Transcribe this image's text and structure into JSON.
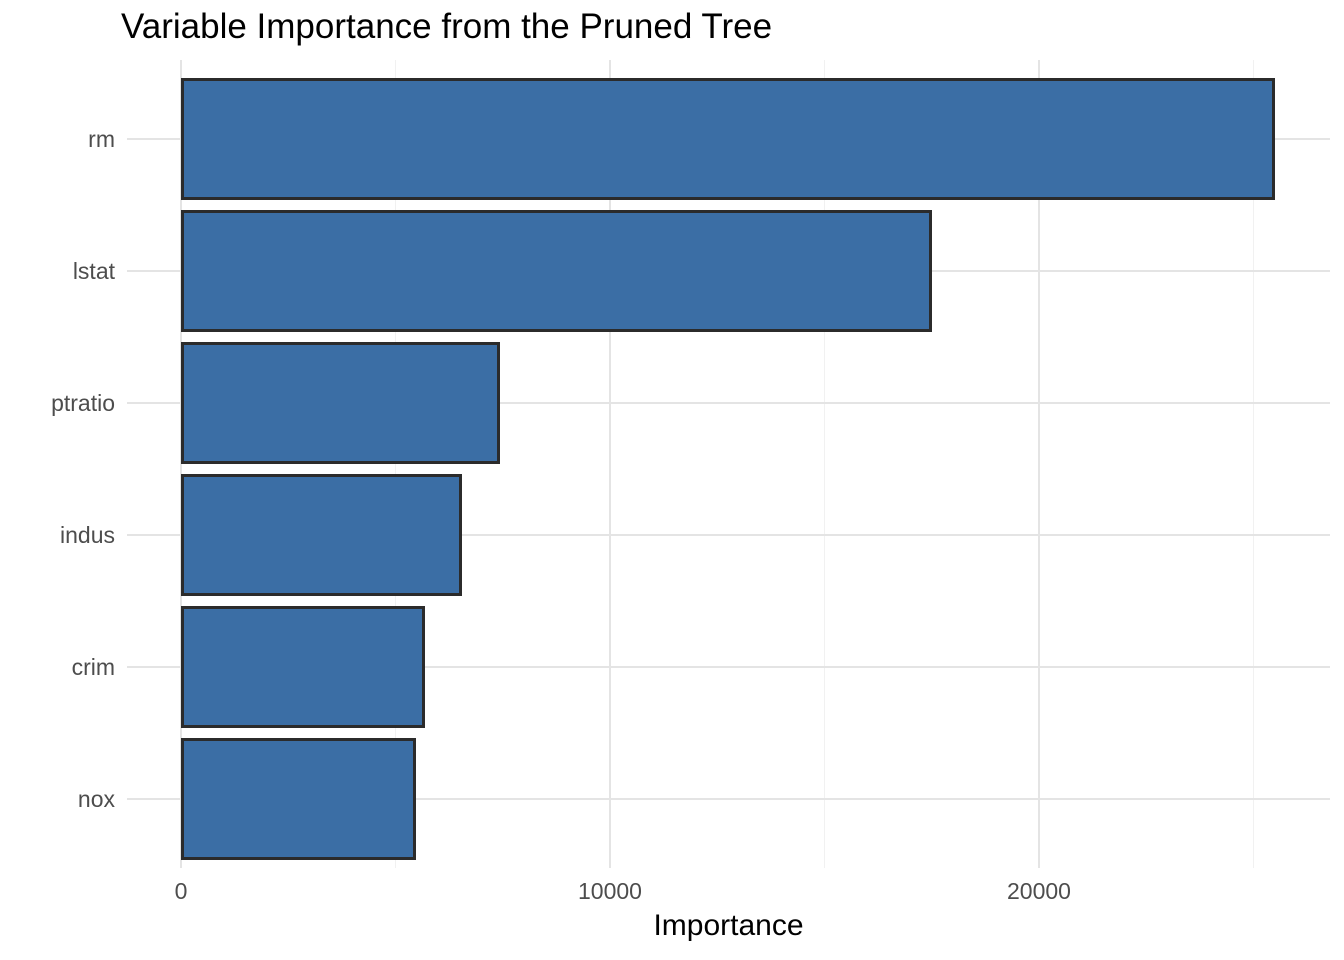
{
  "title": "Variable Importance from the Pruned Tree",
  "chart_data": {
    "type": "bar",
    "orientation": "horizontal",
    "title": "Variable Importance from the Pruned Tree",
    "xlabel": "Importance",
    "ylabel": "",
    "categories": [
      "rm",
      "lstat",
      "ptratio",
      "indus",
      "crim",
      "nox"
    ],
    "values": [
      25500,
      17500,
      7440,
      6560,
      5690,
      5470
    ],
    "xlim": [
      -1259,
      26783
    ],
    "x_major_ticks": [
      0,
      10000,
      20000
    ],
    "x_major_tick_labels": [
      "0",
      "10000",
      "20000"
    ],
    "x_minor_ticks": [
      5000,
      15000,
      25000
    ],
    "grid": true,
    "legend": false,
    "colors": {
      "bar_fill": "#3B6EA5",
      "bar_border": "#2B2B2B",
      "grid_major": "#E4E4E4",
      "grid_minor": "#F1F1F1",
      "tick_label": "#4D4D4D",
      "background": "#FFFFFF"
    }
  }
}
